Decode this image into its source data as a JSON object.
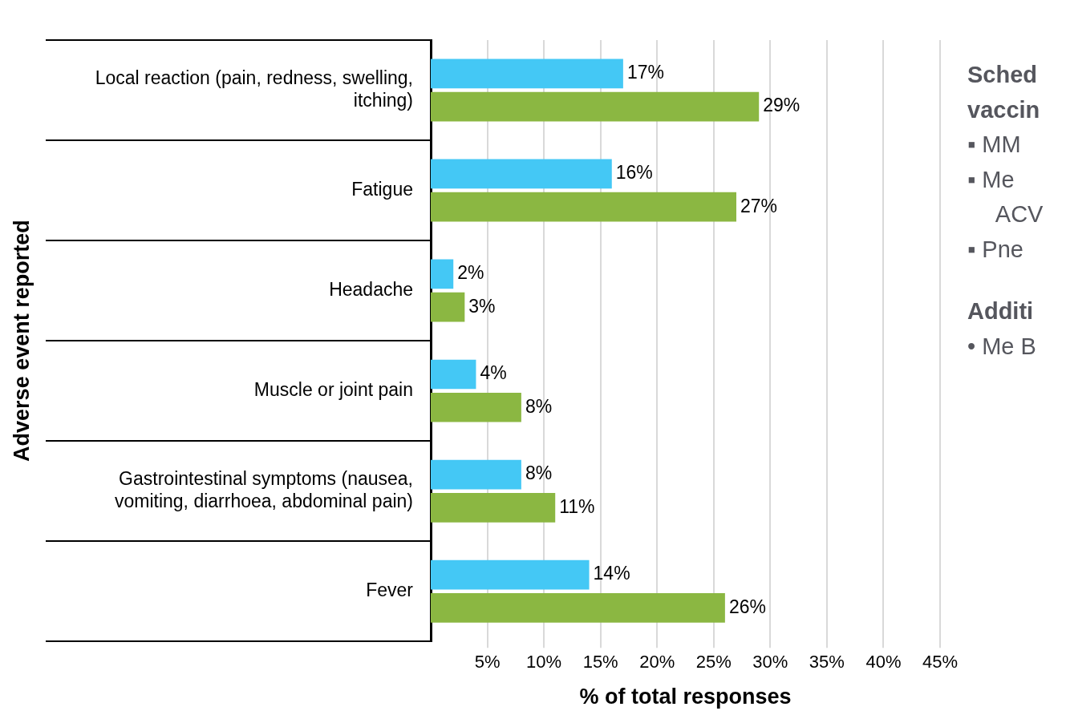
{
  "chart_data": {
    "type": "bar",
    "orientation": "horizontal",
    "categories": [
      "Local reaction (pain, redness, swelling, itching)",
      "Fatigue",
      "Headache",
      "Muscle or joint pain",
      "Gastrointestinal symptoms (nausea, vomiting, diarrhoea, abdominal pain)",
      "Fever"
    ],
    "series": [
      {
        "color": "#44c8f5",
        "values": [
          17,
          16,
          2,
          4,
          8,
          14
        ],
        "value_labels": [
          "17%",
          "16%",
          "2%",
          "4%",
          "8%",
          "14%"
        ]
      },
      {
        "color": "#8bb742",
        "values": [
          29,
          27,
          3,
          8,
          11,
          26
        ],
        "value_labels": [
          "29%",
          "27%",
          "3%",
          "8%",
          "11%",
          "26%"
        ]
      }
    ],
    "xlabel": "% of total responses",
    "ylabel": "Adverse event reported",
    "xlim": [
      0,
      45
    ],
    "xticks": [
      {
        "value": 5,
        "label": "5%"
      },
      {
        "value": 10,
        "label": "10%"
      },
      {
        "value": 15,
        "label": "15%"
      },
      {
        "value": 20,
        "label": "20%"
      },
      {
        "value": 25,
        "label": "25%"
      },
      {
        "value": 30,
        "label": "30%"
      },
      {
        "value": 35,
        "label": "35%"
      },
      {
        "value": 40,
        "label": "40%"
      },
      {
        "value": 45,
        "label": "45%"
      }
    ],
    "grid": "x",
    "annotations": [
      "Sched vaccin",
      "▪ MM",
      "▪ Me ACV",
      "▪ Pne",
      "Additi",
      "• Me B"
    ]
  }
}
